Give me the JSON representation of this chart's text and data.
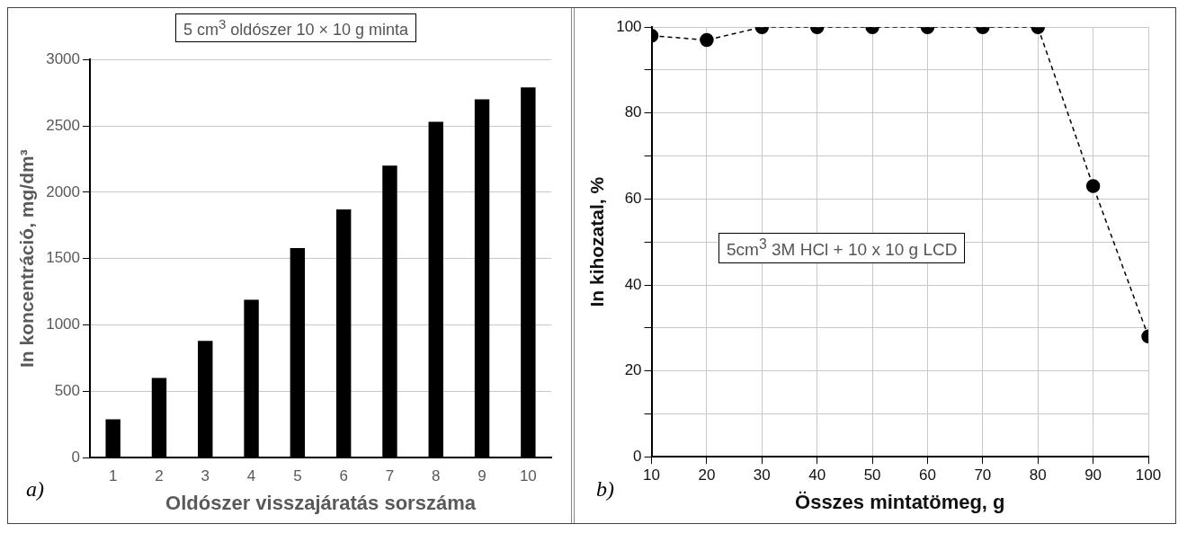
{
  "chart_data": [
    {
      "type": "bar",
      "title": "5 cm$^{3}$ oldószer 10 × 10 g minta",
      "categories": [
        "1",
        "2",
        "3",
        "4",
        "5",
        "6",
        "7",
        "8",
        "9",
        "10"
      ],
      "values": [
        290,
        600,
        880,
        1190,
        1580,
        1870,
        2200,
        2530,
        2700,
        2790
      ],
      "color": "#000000",
      "ylim": [
        0,
        3000
      ],
      "yticks": [
        0,
        500,
        1000,
        1500,
        2000,
        2500,
        3000
      ],
      "grid": "y",
      "ylabel": "In koncentráció, mg/dm³",
      "xlabel": "Oldószer visszajáratás sorszáma",
      "annotations": [
        "a)"
      ]
    },
    {
      "type": "line",
      "x": [
        10,
        20,
        30,
        40,
        50,
        60,
        70,
        80,
        90,
        100
      ],
      "values": [
        98,
        97,
        100,
        100,
        100,
        100,
        100,
        100,
        63,
        28
      ],
      "color": "#000000",
      "marker": "circle",
      "line_style": "dashed",
      "xlim": [
        10,
        100
      ],
      "xticks": [
        10,
        20,
        30,
        40,
        50,
        60,
        70,
        80,
        90,
        100
      ],
      "ylim": [
        0,
        100
      ],
      "yticks": [
        0,
        20,
        40,
        60,
        80,
        100
      ],
      "grid": true,
      "ylabel": "In kihozatal, %",
      "xlabel": "Összes mintatömeg, g",
      "annotations": [
        "5cm$^{3}$ 3M HCl + 10 x 10 g LCD",
        "b)"
      ]
    }
  ]
}
